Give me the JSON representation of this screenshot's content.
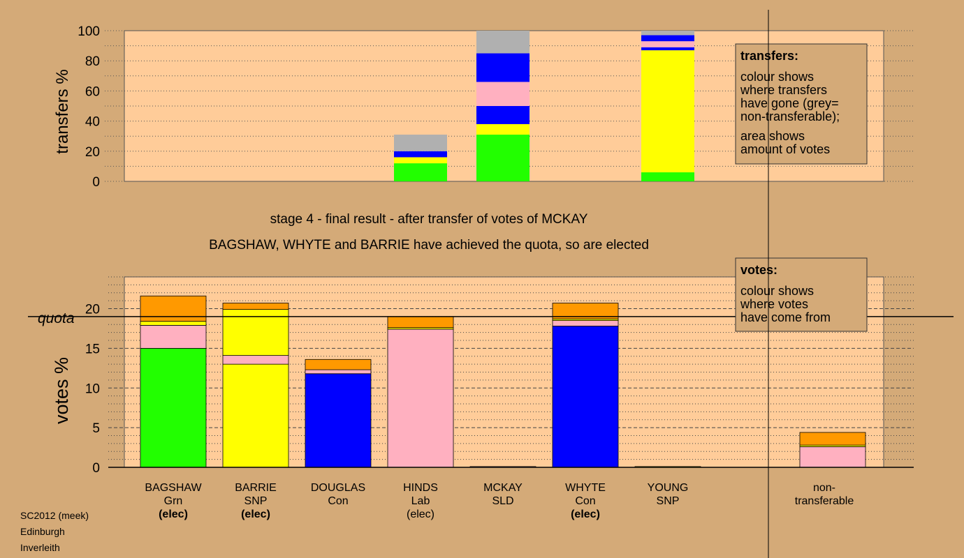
{
  "chart_data": [
    {
      "type": "bar",
      "stacked": true,
      "ylabel": "transfers %",
      "ylim": [
        0,
        100
      ],
      "yticks": [
        0,
        20,
        40,
        60,
        80,
        100
      ],
      "grid": "dotted",
      "bars": [
        {
          "slot": 3,
          "segments": [
            {
              "color": "#22ff00",
              "value": 12
            },
            {
              "color": "#ffff00",
              "value": 4
            },
            {
              "color": "#0000ff",
              "value": 4
            },
            {
              "color": "#b0b0b0",
              "value": 11
            }
          ]
        },
        {
          "slot": 4,
          "segments": [
            {
              "color": "#22ff00",
              "value": 31
            },
            {
              "color": "#ffff00",
              "value": 7
            },
            {
              "color": "#0000ff",
              "value": 12
            },
            {
              "color": "#ffb0c0",
              "value": 16
            },
            {
              "color": "#0000ff",
              "value": 19
            },
            {
              "color": "#b0b0b0",
              "value": 15
            }
          ]
        },
        {
          "slot": 6,
          "segments": [
            {
              "color": "#22ff00",
              "value": 6
            },
            {
              "color": "#ffff00",
              "value": 81
            },
            {
              "color": "#0000ff",
              "value": 2
            },
            {
              "color": "#ffb0c0",
              "value": 4
            },
            {
              "color": "#0000ff",
              "value": 4
            },
            {
              "color": "#b0b0b0",
              "value": 3
            }
          ]
        }
      ],
      "legend": {
        "title": "transfers:",
        "lines": [
          "colour shows",
          "where transfers",
          "have gone (grey=",
          "non-transferable);"
        ],
        "lines2": [
          "area shows",
          "amount of votes"
        ]
      }
    },
    {
      "type": "bar",
      "stacked": true,
      "ylabel": "votes %",
      "ylim": [
        0,
        24
      ],
      "yticks": [
        0,
        5,
        10,
        15,
        20
      ],
      "quota": 19,
      "quota_label": "quota",
      "grid": "dashed",
      "categories": [
        {
          "name": "BAGSHAW",
          "party": "Grn",
          "status": "(elec)",
          "bold": true
        },
        {
          "name": "BARRIE",
          "party": "SNP",
          "status": "(elec)",
          "bold": true
        },
        {
          "name": "DOUGLAS",
          "party": "Con",
          "status": "",
          "bold": false
        },
        {
          "name": "HINDS",
          "party": "Lab",
          "status": "(elec)",
          "bold": false
        },
        {
          "name": "MCKAY",
          "party": "SLD",
          "status": "",
          "bold": false
        },
        {
          "name": "WHYTE",
          "party": "Con",
          "status": "(elec)",
          "bold": true
        },
        {
          "name": "YOUNG",
          "party": "SNP",
          "status": "",
          "bold": false
        }
      ],
      "bars": [
        {
          "slot": 0,
          "segments": [
            {
              "color": "#22ff00",
              "value": 15.0
            },
            {
              "color": "#ffb0c0",
              "value": 2.9
            },
            {
              "color": "#ffff00",
              "value": 0.5
            },
            {
              "color": "#ff9900",
              "value": 3.2
            }
          ]
        },
        {
          "slot": 1,
          "segments": [
            {
              "color": "#ffff00",
              "value": 13.0
            },
            {
              "color": "#ffb0c0",
              "value": 1.1
            },
            {
              "color": "#ffff00",
              "value": 5.8
            },
            {
              "color": "#ff9900",
              "value": 0.8
            }
          ]
        },
        {
          "slot": 2,
          "segments": [
            {
              "color": "#0000ff",
              "value": 11.8
            },
            {
              "color": "#ffb0c0",
              "value": 0.5
            },
            {
              "color": "#ff9900",
              "value": 1.3
            }
          ]
        },
        {
          "slot": 3,
          "segments": [
            {
              "color": "#ffb0c0",
              "value": 17.4
            },
            {
              "color": "#ffff00",
              "value": 0.2
            },
            {
              "color": "#ff9900",
              "value": 1.4
            }
          ]
        },
        {
          "slot": 4,
          "segments": [
            {
              "color": "#ffb0c0",
              "value": 0.1
            }
          ]
        },
        {
          "slot": 5,
          "segments": [
            {
              "color": "#0000ff",
              "value": 17.8
            },
            {
              "color": "#ffb0c0",
              "value": 0.7
            },
            {
              "color": "#ffff00",
              "value": 0.2
            },
            {
              "color": "#ff9900",
              "value": 2.0
            }
          ]
        },
        {
          "slot": 6,
          "segments": [
            {
              "color": "#ffff00",
              "value": 0.1
            }
          ]
        },
        {
          "slot": 8,
          "segments": [
            {
              "color": "#ffb0c0",
              "value": 2.6
            },
            {
              "color": "#ffff00",
              "value": 0.2
            },
            {
              "color": "#ff9900",
              "value": 1.6
            }
          ]
        }
      ],
      "extra_categories": [
        {
          "slot": 8,
          "lines": [
            "non-",
            "transferable"
          ]
        }
      ],
      "legend": {
        "title": "votes:",
        "lines": [
          "colour shows",
          "where votes",
          "have come from"
        ]
      }
    }
  ],
  "stage_title": "stage 4 - final result - after transfer of votes of MCKAY",
  "stage_subtitle": "BAGSHAW, WHYTE and BARRIE have achieved the quota, so are elected",
  "footer": [
    "SC2012 (meek)",
    "Edinburgh",
    "Inverleith"
  ],
  "colors": {
    "background": "#d4aa78",
    "plot_area": "#ffcc99",
    "green": "#22ff00",
    "yellow": "#ffff00",
    "blue": "#0000ff",
    "pink": "#ffb0c0",
    "orange": "#ff9900",
    "grey": "#b0b0b0"
  }
}
